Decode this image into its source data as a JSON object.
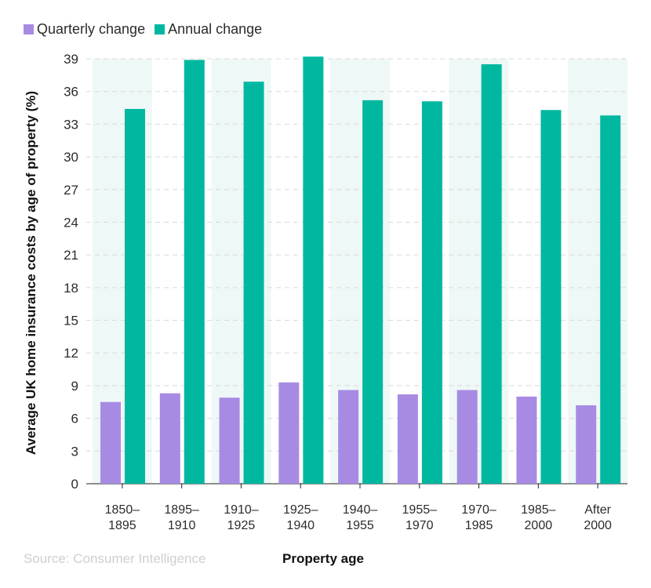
{
  "colors": {
    "quarterly": "#a78be3",
    "annual": "#00b8a0",
    "band": "#eef8f6",
    "grid": "#d9d9d9",
    "tick_text": "#2b2b2b"
  },
  "source": "Source: Consumer Intelligence",
  "chart_data": {
    "type": "bar",
    "title": "",
    "xlabel": "Property age",
    "ylabel": "Average UK home insurance costs by age of property (%)",
    "ylim": [
      0,
      39
    ],
    "yticks": [
      0,
      3,
      6,
      9,
      12,
      15,
      18,
      21,
      24,
      27,
      30,
      33,
      36,
      39
    ],
    "grid": true,
    "legend_position": "top-left",
    "categories": [
      [
        "1850–",
        "1895"
      ],
      [
        "1895–",
        "1910"
      ],
      [
        "1910–",
        "1925"
      ],
      [
        "1925–",
        "1940"
      ],
      [
        "1940–",
        "1955"
      ],
      [
        "1955–",
        "1970"
      ],
      [
        "1970–",
        "1985"
      ],
      [
        "1985–",
        "2000"
      ],
      [
        "After",
        "2000"
      ]
    ],
    "series": [
      {
        "name": "Quarterly change",
        "values": [
          7.5,
          8.3,
          7.9,
          9.3,
          8.6,
          8.2,
          8.6,
          8.0,
          7.2
        ]
      },
      {
        "name": "Annual change",
        "values": [
          34.4,
          38.9,
          36.9,
          39.2,
          35.2,
          35.1,
          38.5,
          34.3,
          33.8
        ]
      }
    ]
  }
}
